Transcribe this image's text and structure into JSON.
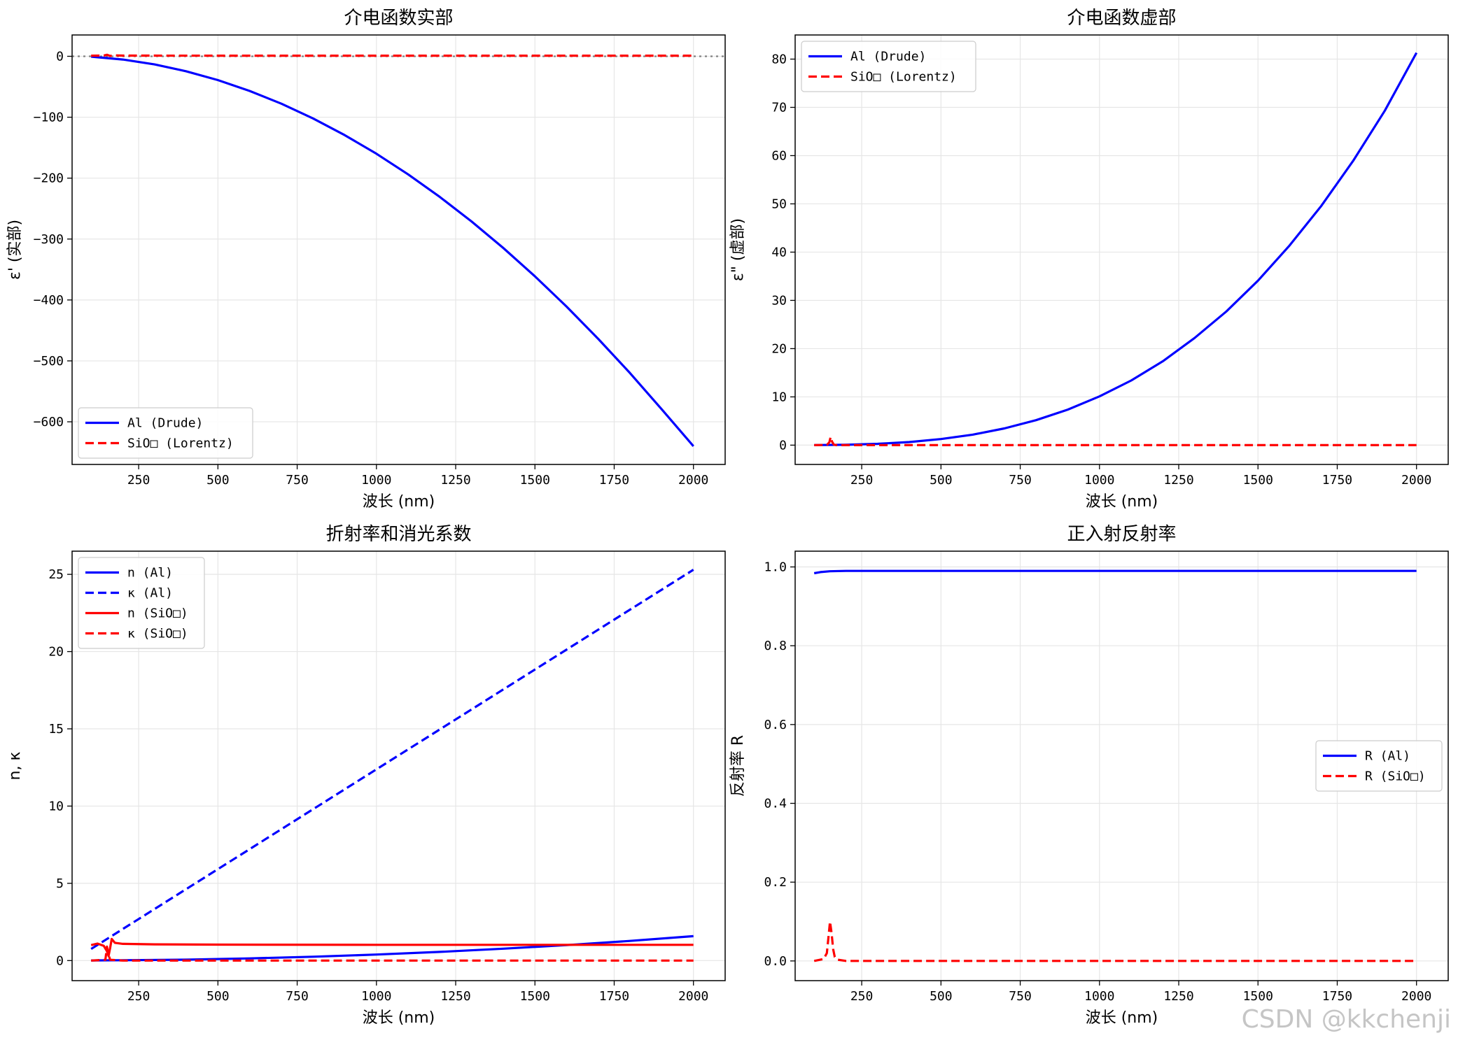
{
  "watermark": "CSDN @kkchenji",
  "chart_data": [
    {
      "type": "line",
      "title": "介电函数实部",
      "xlabel": "波长 (nm)",
      "ylabel": "ε' (实部)",
      "xlim": [
        40,
        2100
      ],
      "ylim": [
        -670,
        35
      ],
      "xticks": [
        250,
        500,
        750,
        1000,
        1250,
        1500,
        1750,
        2000
      ],
      "yticks": [
        0,
        -100,
        -200,
        -300,
        -400,
        -500,
        -600
      ],
      "grid": true,
      "legend": "lower-left",
      "hline": 0,
      "series": [
        {
          "name": "Al (Drude)",
          "color": "#0000ff",
          "dash": "solid",
          "x": [
            100,
            200,
            300,
            400,
            500,
            600,
            700,
            800,
            900,
            1000,
            1100,
            1200,
            1300,
            1400,
            1500,
            1600,
            1700,
            1800,
            1900,
            2000
          ],
          "y": [
            -0.6,
            -5.3,
            -13.3,
            -24.6,
            -39.1,
            -56.8,
            -77.8,
            -102.0,
            -129.4,
            -160.0,
            -193.8,
            -230.9,
            -271.1,
            -314.6,
            -361.2,
            -411.0,
            -464.0,
            -520.1,
            -579.5,
            -640.0
          ]
        },
        {
          "name": "SiO□ (Lorentz)",
          "color": "#ff0000",
          "dash": "dashed",
          "x": [
            100,
            140,
            150,
            160,
            170,
            200,
            500,
            1000,
            1500,
            2000
          ],
          "y": [
            1.0,
            1.2,
            2.5,
            0.5,
            1.6,
            1.1,
            1.0,
            1.0,
            1.0,
            1.0
          ]
        }
      ]
    },
    {
      "type": "line",
      "title": "介电函数虚部",
      "xlabel": "波长 (nm)",
      "ylabel": "ε\" (虚部)",
      "xlim": [
        40,
        2100
      ],
      "ylim": [
        -4,
        85
      ],
      "xticks": [
        250,
        500,
        750,
        1000,
        1250,
        1500,
        1750,
        2000
      ],
      "yticks": [
        0,
        10,
        20,
        30,
        40,
        50,
        60,
        70,
        80
      ],
      "grid": true,
      "legend": "upper-left",
      "series": [
        {
          "name": "Al (Drude)",
          "color": "#0000ff",
          "dash": "solid",
          "x": [
            100,
            200,
            300,
            400,
            500,
            600,
            700,
            800,
            900,
            1000,
            1100,
            1200,
            1300,
            1400,
            1500,
            1600,
            1700,
            1800,
            1900,
            2000
          ],
          "y": [
            0.01,
            0.08,
            0.27,
            0.64,
            1.26,
            2.18,
            3.46,
            5.17,
            7.36,
            10.1,
            13.4,
            17.4,
            22.2,
            27.7,
            34.1,
            41.4,
            49.6,
            58.9,
            69.3,
            81.3
          ]
        },
        {
          "name": "SiO□ (Lorentz)",
          "color": "#ff0000",
          "dash": "dashed",
          "x": [
            100,
            140,
            148,
            152,
            156,
            162,
            170,
            200,
            500,
            1000,
            1500,
            2000
          ],
          "y": [
            0.0,
            0.05,
            0.6,
            1.7,
            0.8,
            0.1,
            0.0,
            0.0,
            0.0,
            0.0,
            0.0,
            0.0
          ]
        }
      ]
    },
    {
      "type": "line",
      "title": "折射率和消光系数",
      "xlabel": "波长 (nm)",
      "ylabel": "n, κ",
      "xlim": [
        40,
        2100
      ],
      "ylim": [
        -1.3,
        26.5
      ],
      "xticks": [
        250,
        500,
        750,
        1000,
        1250,
        1500,
        1750,
        2000
      ],
      "yticks": [
        0,
        5,
        10,
        15,
        20,
        25
      ],
      "grid": true,
      "legend": "upper-left",
      "series": [
        {
          "name": "n (Al)",
          "color": "#0000ff",
          "dash": "solid",
          "x": [
            100,
            200,
            400,
            600,
            800,
            1000,
            1200,
            1400,
            1600,
            1800,
            2000
          ],
          "y": [
            0.01,
            0.02,
            0.06,
            0.14,
            0.25,
            0.39,
            0.56,
            0.77,
            1.0,
            1.27,
            1.58
          ]
        },
        {
          "name": "κ (Al)",
          "color": "#0000ff",
          "dash": "dashed",
          "x": [
            100,
            2000
          ],
          "y": [
            0.75,
            25.3
          ]
        },
        {
          "name": "n (SiO□)",
          "color": "#ff0000",
          "dash": "solid",
          "x": [
            100,
            120,
            140,
            150,
            155,
            160,
            165,
            175,
            200,
            300,
            500,
            1000,
            1500,
            2000
          ],
          "y": [
            1.0,
            1.1,
            0.95,
            0.6,
            0.3,
            0.8,
            1.4,
            1.15,
            1.08,
            1.05,
            1.03,
            1.02,
            1.02,
            1.02
          ]
        },
        {
          "name": "κ (SiO□)",
          "color": "#ff0000",
          "dash": "dashed",
          "x": [
            100,
            145,
            150,
            155,
            160,
            200,
            500,
            1000,
            1500,
            2000
          ],
          "y": [
            0.0,
            0.05,
            0.9,
            0.4,
            0.05,
            0.0,
            0.0,
            0.0,
            0.0,
            0.0
          ]
        }
      ]
    },
    {
      "type": "line",
      "title": "正入射反射率",
      "xlabel": "波长 (nm)",
      "ylabel": "反射率 R",
      "xlim": [
        40,
        2100
      ],
      "ylim": [
        -0.05,
        1.04
      ],
      "xticks": [
        250,
        500,
        750,
        1000,
        1250,
        1500,
        1750,
        2000
      ],
      "yticks": [
        0.0,
        0.2,
        0.4,
        0.6,
        0.8,
        1.0
      ],
      "grid": true,
      "legend": "center-right",
      "series": [
        {
          "name": "R (Al)",
          "color": "#0000ff",
          "dash": "solid",
          "x": [
            100,
            120,
            150,
            200,
            250,
            300,
            500,
            1000,
            1500,
            2000
          ],
          "y": [
            0.984,
            0.987,
            0.989,
            0.99,
            0.99,
            0.99,
            0.99,
            0.99,
            0.99,
            0.99
          ]
        },
        {
          "name": "R (SiO□)",
          "color": "#ff0000",
          "dash": "dashed",
          "x": [
            100,
            130,
            140,
            145,
            150,
            155,
            160,
            165,
            175,
            200,
            500,
            1000,
            1500,
            2000
          ],
          "y": [
            0.0,
            0.005,
            0.02,
            0.06,
            0.1,
            0.07,
            0.03,
            0.01,
            0.003,
            0.0,
            0.0,
            0.0,
            0.0,
            0.0
          ]
        }
      ]
    }
  ]
}
